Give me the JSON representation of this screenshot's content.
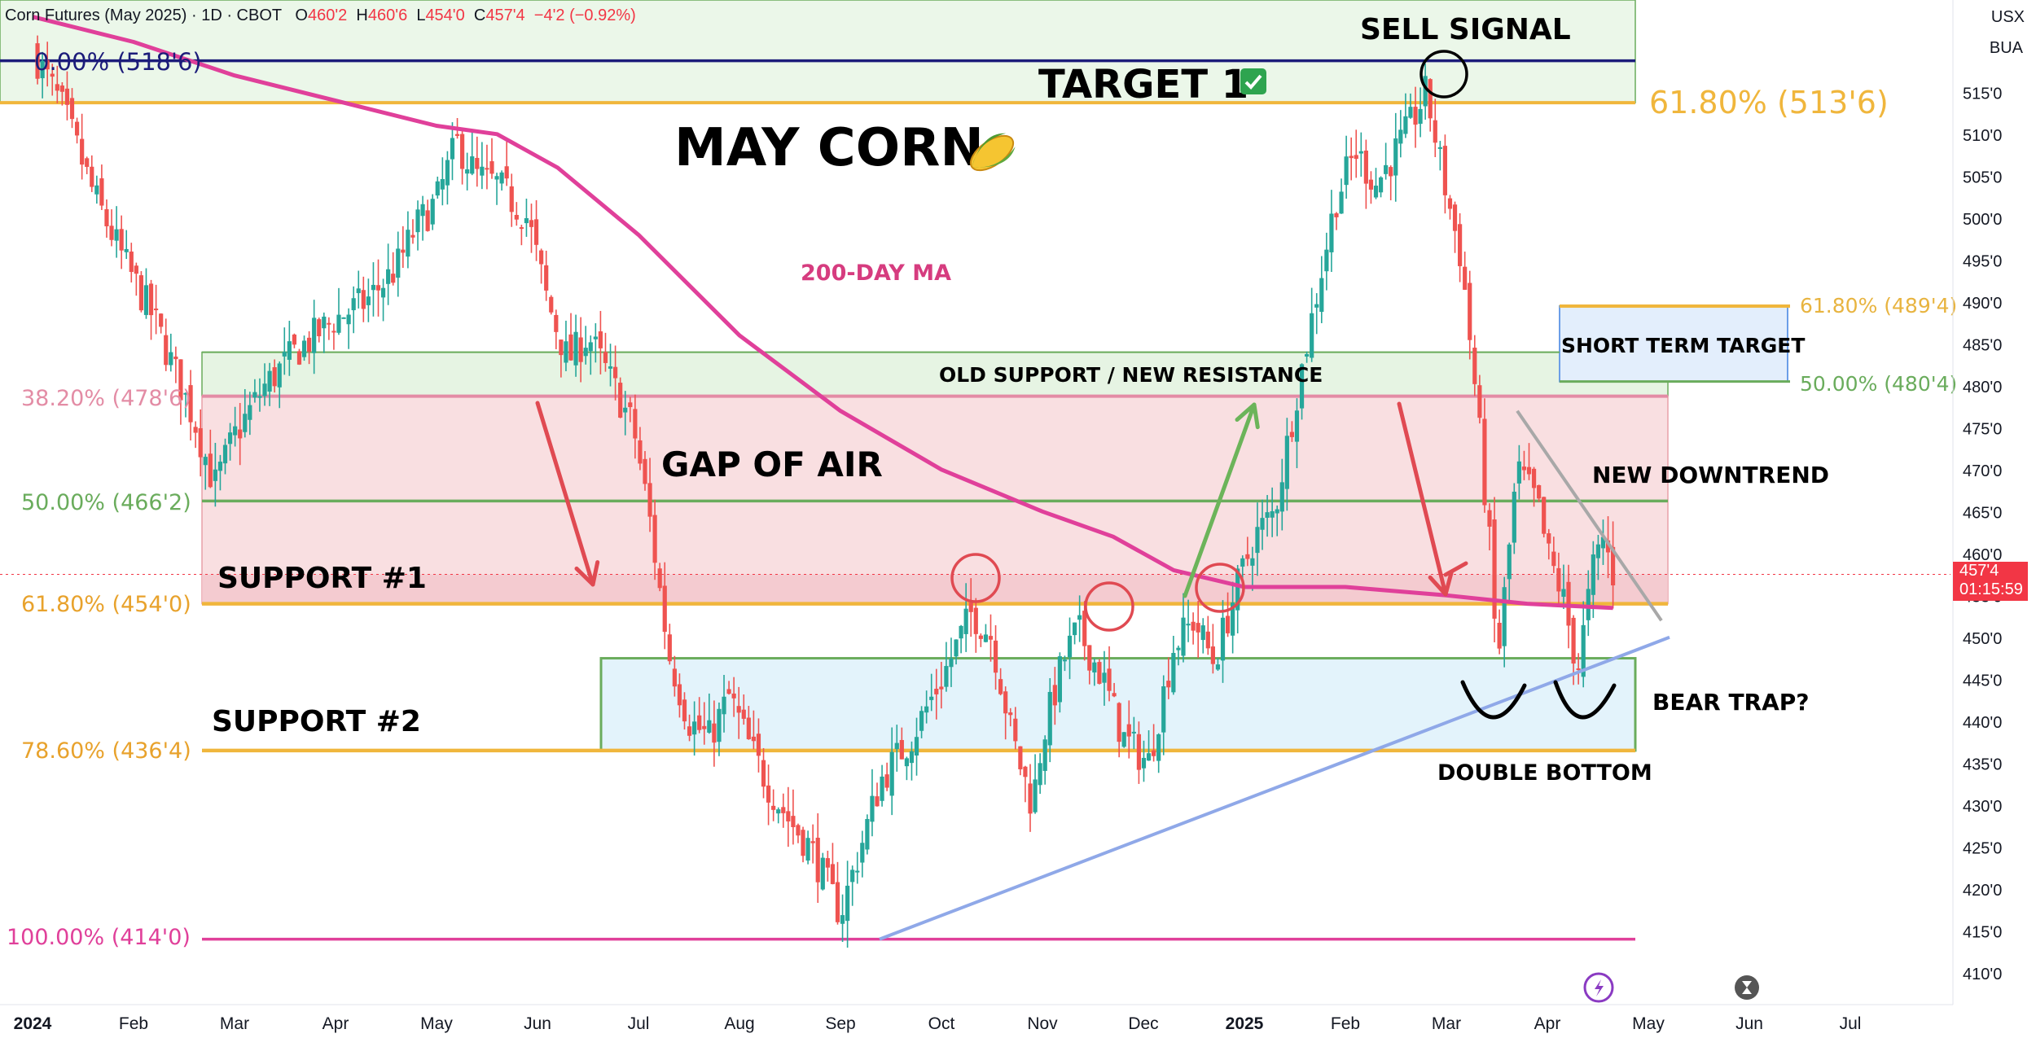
{
  "header": {
    "symbol": "Corn Futures (May 2025) · 1D · CBOT",
    "open_label": "O",
    "open": "460'2",
    "high_label": "H",
    "high": "460'6",
    "low_label": "L",
    "low": "454'0",
    "close_label": "C",
    "close": "457'4",
    "change": "−4'2 (−0.92%)"
  },
  "top_right": {
    "currency": "USX",
    "unit": "BUA"
  },
  "price_tag": {
    "price": "457'4",
    "countdown": "01:15:59"
  },
  "colors": {
    "bull": "#26a69a",
    "bear": "#ef5350",
    "ma": "#e0409a",
    "fib_gold": "#f0b63c",
    "fib_green": "#6aac5c",
    "fib_pink": "#e38ca5",
    "fib_navy": "#1c1c7a",
    "trend_blue": "#8fa8e8",
    "down_gray": "#a8a8a8"
  },
  "annotations": {
    "title": "MAY CORN",
    "title_icon": "corn-icon",
    "target1": "TARGET 1",
    "target1_icon": "check-icon",
    "sell_signal": "SELL SIGNAL",
    "ma_label": "200-DAY MA",
    "old_support": "OLD SUPPORT / NEW RESISTANCE",
    "gap": "GAP OF AIR",
    "support1": "SUPPORT #1",
    "support2": "SUPPORT #2",
    "new_downtrend": "NEW DOWNTREND",
    "short_term_target": "SHORT TERM TARGET",
    "bear_trap": "BEAR TRAP?",
    "double_bottom": "DOUBLE BOTTOM"
  },
  "chart_data": {
    "type": "candlestick",
    "title": "Corn Futures (May 2025) · 1D · CBOT",
    "ylim": [
      406,
      527
    ],
    "yticks": [
      "410'0",
      "415'0",
      "420'0",
      "425'0",
      "430'0",
      "435'0",
      "440'0",
      "445'0",
      "450'0",
      "455'0",
      "460'0",
      "465'0",
      "470'0",
      "475'0",
      "480'0",
      "485'0",
      "490'0",
      "495'0",
      "500'0",
      "505'0",
      "510'0",
      "515'0"
    ],
    "x_months": [
      "2024",
      "Feb",
      "Mar",
      "Apr",
      "May",
      "Jun",
      "Jul",
      "Aug",
      "Sep",
      "Oct",
      "Nov",
      "Dec",
      "2025",
      "Feb",
      "Mar",
      "Apr",
      "May",
      "Jun",
      "Jul"
    ],
    "x_month_positions": [
      0,
      1,
      2,
      3,
      4,
      5,
      6,
      7,
      8,
      9,
      10,
      11,
      12,
      13,
      14,
      15,
      16,
      17,
      18
    ],
    "bold_ticks": [
      "2024",
      "2025"
    ],
    "fib_levels": [
      {
        "label": "0.00% (518'6)",
        "value": 518.75
      },
      {
        "label": "38.20% (478'6)",
        "value": 478.75
      },
      {
        "label": "50.00% (466'2)",
        "value": 466.25
      },
      {
        "label": "61.80% (454'0)",
        "value": 454.0
      },
      {
        "label": "78.60% (436'4)",
        "value": 436.5
      },
      {
        "label": "100.00% (414'0)",
        "value": 414.0
      }
    ],
    "fib_upper_61": {
      "label": "61.80% (513'6)",
      "value": 513.75
    },
    "target_fibs": [
      {
        "label": "61.80% (489'4)",
        "value": 489.5
      },
      {
        "label": "50.00% (480'4)",
        "value": 480.5
      }
    ],
    "resistance_band": [
      478.75,
      484.0
    ],
    "gap_zone": [
      454.0,
      478.75
    ],
    "support2_zone": [
      436.5,
      447.5
    ],
    "last_price": 457.5,
    "price_path": [
      [
        0,
        520
      ],
      [
        0.3,
        513
      ],
      [
        0.6,
        503
      ],
      [
        0.9,
        495
      ],
      [
        1.2,
        488
      ],
      [
        1.4,
        482
      ],
      [
        1.6,
        476
      ],
      [
        1.8,
        468
      ],
      [
        2.0,
        474
      ],
      [
        2.3,
        480
      ],
      [
        2.6,
        484
      ],
      [
        3.0,
        488
      ],
      [
        3.3,
        490
      ],
      [
        3.6,
        494
      ],
      [
        3.8,
        499
      ],
      [
        4.0,
        502
      ],
      [
        4.2,
        509
      ],
      [
        4.4,
        505
      ],
      [
        4.6,
        504
      ],
      [
        4.9,
        500
      ],
      [
        5.1,
        490
      ],
      [
        5.3,
        483
      ],
      [
        5.5,
        486
      ],
      [
        5.75,
        480
      ],
      [
        5.95,
        475
      ],
      [
        6.1,
        465
      ],
      [
        6.3,
        448
      ],
      [
        6.5,
        440
      ],
      [
        6.7,
        438
      ],
      [
        6.9,
        443
      ],
      [
        7.1,
        437
      ],
      [
        7.3,
        432
      ],
      [
        7.5,
        428
      ],
      [
        7.7,
        425
      ],
      [
        7.85,
        421
      ],
      [
        8.0,
        417
      ],
      [
        8.2,
        425
      ],
      [
        8.4,
        433
      ],
      [
        8.7,
        438
      ],
      [
        9.0,
        445
      ],
      [
        9.3,
        453
      ],
      [
        9.5,
        450
      ],
      [
        9.7,
        438
      ],
      [
        9.9,
        430
      ],
      [
        10.0,
        438
      ],
      [
        10.2,
        447
      ],
      [
        10.35,
        451
      ],
      [
        10.6,
        445
      ],
      [
        10.8,
        438
      ],
      [
        11.05,
        435
      ],
      [
        11.3,
        449
      ],
      [
        11.5,
        452
      ],
      [
        11.7,
        447
      ],
      [
        11.9,
        455
      ],
      [
        12.1,
        462
      ],
      [
        12.3,
        465
      ],
      [
        12.5,
        478
      ],
      [
        12.7,
        490
      ],
      [
        12.9,
        502
      ],
      [
        13.1,
        508
      ],
      [
        13.3,
        504
      ],
      [
        13.6,
        510
      ],
      [
        13.8,
        515
      ],
      [
        14.0,
        503
      ],
      [
        14.15,
        495
      ],
      [
        14.3,
        478
      ],
      [
        14.45,
        458
      ],
      [
        14.5,
        446
      ],
      [
        14.7,
        470
      ],
      [
        14.9,
        466
      ],
      [
        15.0,
        460
      ],
      [
        15.15,
        455
      ],
      [
        15.3,
        446
      ],
      [
        15.45,
        458
      ],
      [
        15.55,
        462
      ],
      [
        15.65,
        457.5
      ]
    ],
    "ma200_path": [
      [
        0,
        524
      ],
      [
        1,
        521
      ],
      [
        2,
        517
      ],
      [
        3,
        514
      ],
      [
        4,
        511
      ],
      [
        4.6,
        510
      ],
      [
        5.2,
        506
      ],
      [
        6,
        498
      ],
      [
        7,
        486
      ],
      [
        8,
        477
      ],
      [
        9,
        470
      ],
      [
        10,
        465
      ],
      [
        10.7,
        462
      ],
      [
        11.3,
        458
      ],
      [
        12,
        456
      ],
      [
        13,
        456
      ],
      [
        14,
        455
      ],
      [
        14.8,
        454
      ],
      [
        15.65,
        453.5
      ]
    ],
    "uptrend_line": [
      [
        8,
        414
      ],
      [
        16.4,
        450
      ]
    ],
    "downtrend_line": [
      [
        14.6,
        477
      ],
      [
        16.35,
        452
      ]
    ]
  }
}
